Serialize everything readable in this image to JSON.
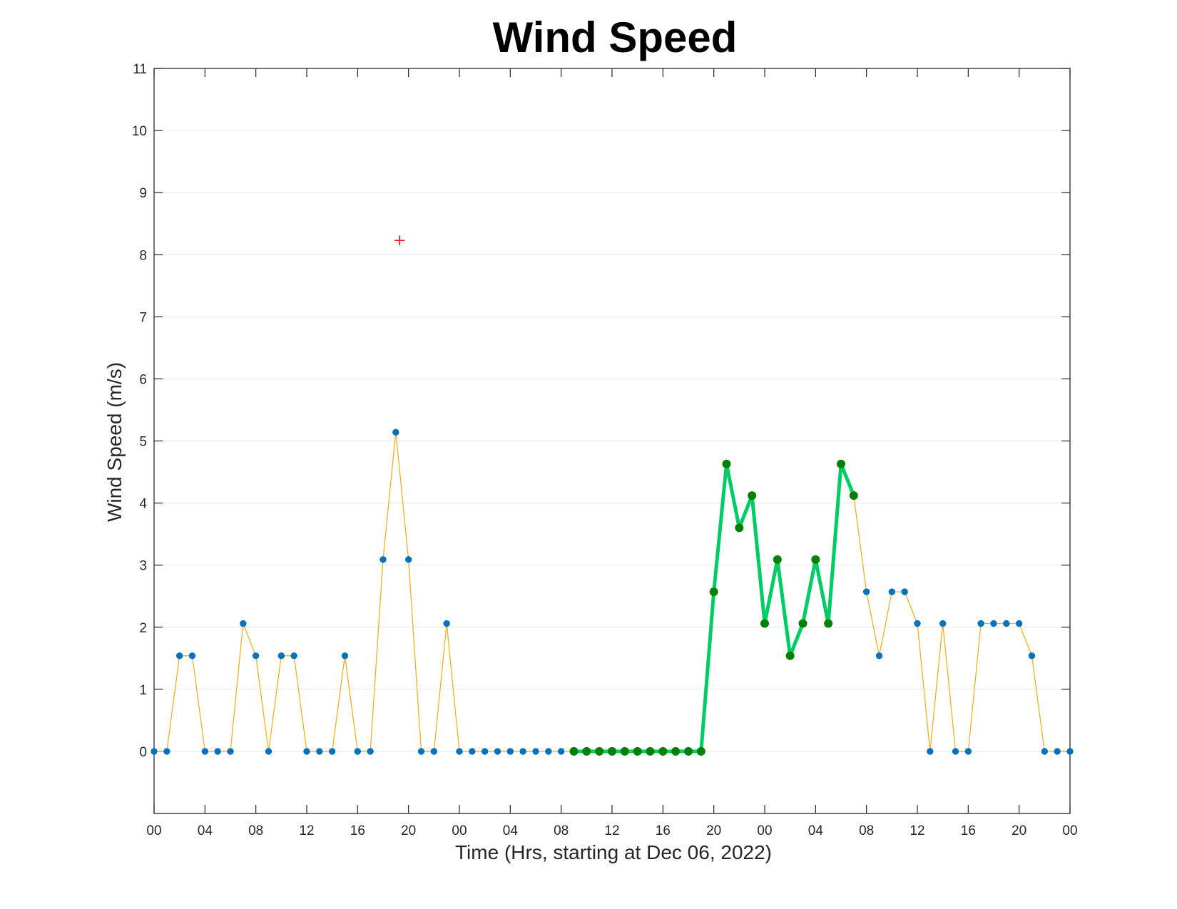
{
  "chart_data": {
    "type": "line",
    "title": "Wind Speed",
    "xlabel": "Time (Hrs, starting at Dec 06, 2022)",
    "ylabel": "Wind Speed (m/s)",
    "ylim": [
      -1,
      11
    ],
    "yticks": [
      0,
      1,
      2,
      3,
      4,
      5,
      6,
      7,
      8,
      9,
      10,
      11
    ],
    "xlim": [
      0,
      72
    ],
    "xtick_labels": [
      "00",
      "04",
      "08",
      "12",
      "16",
      "20",
      "00",
      "04",
      "08",
      "12",
      "16",
      "20",
      "00",
      "04",
      "08",
      "12",
      "16",
      "20",
      "00"
    ],
    "grid": "horizontal",
    "x_unit": "hours",
    "series": [
      {
        "style": "thin orange line with blue markers",
        "color": "#EDB120",
        "marker_color": "#0072BD",
        "x": [
          0,
          1,
          2,
          3,
          4,
          5,
          6,
          7,
          8,
          9,
          10,
          11,
          12,
          13,
          14,
          15,
          16,
          17,
          18,
          19,
          20,
          21,
          22,
          23,
          24,
          25,
          26,
          27,
          28,
          29,
          30,
          31,
          32,
          33,
          34,
          35,
          36,
          37,
          38,
          39,
          40,
          41,
          42,
          43,
          44,
          45,
          46,
          47,
          48,
          49,
          50,
          51,
          52,
          53,
          54,
          55,
          56,
          57,
          58,
          59,
          60,
          61,
          62,
          63,
          64,
          65,
          66,
          67,
          68,
          69,
          70,
          71,
          72
        ],
        "values": [
          0,
          0,
          1.54,
          1.54,
          0,
          0,
          0,
          2.06,
          1.54,
          0,
          1.54,
          1.54,
          0,
          0,
          0,
          1.54,
          0,
          0,
          3.09,
          5.14,
          3.09,
          0,
          0,
          2.06,
          0,
          0,
          0,
          0,
          0,
          0,
          0,
          0,
          0,
          0,
          0,
          0,
          0,
          0,
          0,
          0,
          0,
          0,
          0,
          0,
          2.57,
          4.63,
          3.6,
          4.12,
          2.06,
          3.09,
          1.54,
          2.06,
          3.09,
          2.06,
          4.63,
          4.12,
          2.57,
          1.54,
          2.57,
          2.57,
          2.06,
          0,
          2.06,
          0,
          0,
          2.06,
          2.06,
          2.06,
          2.06,
          1.54,
          0,
          0,
          0
        ]
      },
      {
        "style": "thick green line with dark green markers",
        "color": "#00CC66",
        "marker_color": "#008000",
        "x": [
          33,
          34,
          35,
          36,
          37,
          38,
          39,
          40,
          41,
          42,
          43,
          44,
          45,
          46,
          47,
          48,
          49,
          50,
          51,
          52,
          53,
          54,
          55
        ],
        "values": [
          0,
          0,
          0,
          0,
          0,
          0,
          0,
          0,
          0,
          0,
          0,
          2.57,
          4.63,
          3.6,
          4.12,
          2.06,
          3.09,
          1.54,
          2.06,
          3.09,
          2.06,
          4.63,
          4.12
        ]
      }
    ],
    "annotations": [
      {
        "type": "marker",
        "symbol": "+",
        "color": "#FF0000",
        "x": 19.3,
        "y": 8.23
      }
    ]
  }
}
